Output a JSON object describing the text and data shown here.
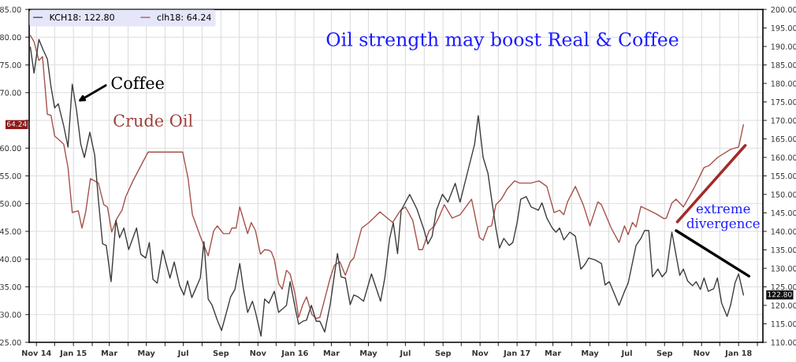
{
  "chart_data": {
    "type": "line",
    "xlim": [
      "2014-10-20",
      "2018-02-10"
    ],
    "xticks": [
      {
        "value": "2014-11-01",
        "label": "Nov 14"
      },
      {
        "value": "2014-12-01",
        "label": null
      },
      {
        "value": "2015-01-01",
        "label": "Jan 15"
      },
      {
        "value": "2015-02-01",
        "label": null
      },
      {
        "value": "2015-03-01",
        "label": "Mar"
      },
      {
        "value": "2015-04-01",
        "label": null
      },
      {
        "value": "2015-05-01",
        "label": "May"
      },
      {
        "value": "2015-06-01",
        "label": null
      },
      {
        "value": "2015-07-01",
        "label": "Jul"
      },
      {
        "value": "2015-08-01",
        "label": null
      },
      {
        "value": "2015-09-01",
        "label": "Sep"
      },
      {
        "value": "2015-10-01",
        "label": null
      },
      {
        "value": "2015-11-01",
        "label": "Nov"
      },
      {
        "value": "2015-12-01",
        "label": null
      },
      {
        "value": "2016-01-01",
        "label": "Jan 16"
      },
      {
        "value": "2016-02-01",
        "label": null
      },
      {
        "value": "2016-03-01",
        "label": "Mar"
      },
      {
        "value": "2016-04-01",
        "label": null
      },
      {
        "value": "2016-05-01",
        "label": "May"
      },
      {
        "value": "2016-06-01",
        "label": null
      },
      {
        "value": "2016-07-01",
        "label": "Jul"
      },
      {
        "value": "2016-08-01",
        "label": null
      },
      {
        "value": "2016-09-01",
        "label": "Sep"
      },
      {
        "value": "2016-10-01",
        "label": null
      },
      {
        "value": "2016-11-01",
        "label": "Nov"
      },
      {
        "value": "2016-12-01",
        "label": null
      },
      {
        "value": "2017-01-01",
        "label": "Jan 17"
      },
      {
        "value": "2017-02-01",
        "label": null
      },
      {
        "value": "2017-03-01",
        "label": "Mar"
      },
      {
        "value": "2017-04-01",
        "label": null
      },
      {
        "value": "2017-05-01",
        "label": "May"
      },
      {
        "value": "2017-06-01",
        "label": null
      },
      {
        "value": "2017-07-01",
        "label": "Jul"
      },
      {
        "value": "2017-08-01",
        "label": null
      },
      {
        "value": "2017-09-01",
        "label": "Sep"
      },
      {
        "value": "2017-10-01",
        "label": null
      },
      {
        "value": "2017-11-01",
        "label": "Nov"
      },
      {
        "value": "2017-12-01",
        "label": null
      },
      {
        "value": "2018-01-01",
        "label": "Jan 18"
      },
      {
        "value": "2018-02-01",
        "label": null
      }
    ],
    "ylim": [
      25,
      85
    ],
    "yticks": [
      {
        "value": 25,
        "label": "25.00"
      },
      {
        "value": 30,
        "label": "30.00"
      },
      {
        "value": 35,
        "label": "35.00"
      },
      {
        "value": 40,
        "label": "40.00"
      },
      {
        "value": 45,
        "label": "45.00"
      },
      {
        "value": 50,
        "label": "50.00"
      },
      {
        "value": 55,
        "label": "55.00"
      },
      {
        "value": 60,
        "label": "60.00"
      },
      {
        "value": 65,
        "label": null
      },
      {
        "value": 70,
        "label": "70.00"
      },
      {
        "value": 75,
        "label": "75.00"
      },
      {
        "value": 80,
        "label": "80.00"
      },
      {
        "value": 85,
        "label": "85.00"
      }
    ],
    "y2lim": [
      110,
      200
    ],
    "y2ticks": [
      {
        "value": 110,
        "label": "110.00"
      },
      {
        "value": 115,
        "label": "115.00"
      },
      {
        "value": 120,
        "label": "120.00"
      },
      {
        "value": 125,
        "label": "125.00"
      },
      {
        "value": 130,
        "label": "130.00"
      },
      {
        "value": 135,
        "label": "135.00"
      },
      {
        "value": 140,
        "label": "140.00"
      },
      {
        "value": 145,
        "label": "145.00"
      },
      {
        "value": 150,
        "label": "150.00"
      },
      {
        "value": 155,
        "label": "155.00"
      },
      {
        "value": 160,
        "label": "160.00"
      },
      {
        "value": 165,
        "label": "165.00"
      },
      {
        "value": 170,
        "label": "170.00"
      },
      {
        "value": 175,
        "label": "175.00"
      },
      {
        "value": 180,
        "label": "180.00"
      },
      {
        "value": 185,
        "label": "185.00"
      },
      {
        "value": 190,
        "label": "190.00"
      },
      {
        "value": 195,
        "label": "195.00"
      },
      {
        "value": 200,
        "label": "200.00"
      }
    ],
    "grid": true,
    "legend": "top left",
    "annotations": [
      "Oil strength may boost Real & Coffee",
      "Coffee",
      "Crude Oil",
      "extreme\ndivergence",
      "64.24",
      "122.80"
    ],
    "series": [
      {
        "name": "KCH18: 122.80",
        "color": "#3c3c3c",
        "axis": "y2",
        "x": [
          "2014-10-22",
          "2014-10-28",
          "2014-11-05",
          "2014-11-12",
          "2014-11-19",
          "2014-11-25",
          "2014-12-01",
          "2014-12-07",
          "2014-12-16",
          "2014-12-23",
          "2014-12-30",
          "2015-01-06",
          "2015-01-13",
          "2015-01-19",
          "2015-01-28",
          "2015-02-05",
          "2015-02-11",
          "2015-02-18",
          "2015-02-24",
          "2015-03-04",
          "2015-03-12",
          "2015-03-18",
          "2015-03-25",
          "2015-04-02",
          "2015-04-15",
          "2015-04-22",
          "2015-04-30",
          "2015-05-06",
          "2015-05-12",
          "2015-05-19",
          "2015-05-28",
          "2015-06-09",
          "2015-06-16",
          "2015-06-25",
          "2015-07-02",
          "2015-07-08",
          "2015-07-15",
          "2015-07-29",
          "2015-08-04",
          "2015-08-11",
          "2015-08-17",
          "2015-08-26",
          "2015-09-02",
          "2015-09-17",
          "2015-09-24",
          "2015-10-02",
          "2015-10-08",
          "2015-10-15",
          "2015-10-23",
          "2015-10-28",
          "2015-11-06",
          "2015-11-12",
          "2015-11-19",
          "2015-11-28",
          "2015-12-05",
          "2015-12-18",
          "2015-12-24",
          "2016-01-01",
          "2016-01-07",
          "2016-01-14",
          "2016-01-20",
          "2016-01-28",
          "2016-02-05",
          "2016-02-11",
          "2016-02-19",
          "2016-02-28",
          "2016-03-11",
          "2016-03-17",
          "2016-03-24",
          "2016-04-01",
          "2016-04-07",
          "2016-04-14",
          "2016-04-23",
          "2016-05-06",
          "2016-05-21",
          "2016-05-28",
          "2016-06-05",
          "2016-06-11",
          "2016-06-18",
          "2016-06-24",
          "2016-07-08",
          "2016-07-20",
          "2016-08-01",
          "2016-08-07",
          "2016-08-14",
          "2016-08-21",
          "2016-08-31",
          "2016-09-09",
          "2016-09-21",
          "2016-09-29",
          "2016-10-12",
          "2016-10-23",
          "2016-10-29",
          "2016-11-06",
          "2016-11-14",
          "2016-11-20",
          "2016-11-27",
          "2016-12-03",
          "2016-12-10",
          "2016-12-19",
          "2016-12-25",
          "2017-01-01",
          "2017-01-07",
          "2017-01-16",
          "2017-01-24",
          "2017-02-05",
          "2017-02-11",
          "2017-02-19",
          "2017-02-28",
          "2017-03-06",
          "2017-03-12",
          "2017-03-19",
          "2017-03-29",
          "2017-04-07",
          "2017-04-16",
          "2017-04-22",
          "2017-04-29",
          "2017-05-09",
          "2017-05-20",
          "2017-05-26",
          "2017-06-02",
          "2017-06-18",
          "2017-06-27",
          "2017-07-03",
          "2017-07-16",
          "2017-07-24",
          "2017-07-30",
          "2017-08-06",
          "2017-08-12",
          "2017-08-21",
          "2017-08-28",
          "2017-09-04",
          "2017-09-13",
          "2017-09-26",
          "2017-10-02",
          "2017-10-09",
          "2017-10-17",
          "2017-10-23",
          "2017-10-30",
          "2017-11-05",
          "2017-11-12",
          "2017-11-21",
          "2017-11-27",
          "2017-12-04",
          "2017-12-13",
          "2017-12-19",
          "2017-12-26",
          "2018-01-01",
          "2018-01-09"
        ],
        "values": [
          189.8,
          182.8,
          191.9,
          189.1,
          186.6,
          179.1,
          173.4,
          174.5,
          168.5,
          162.8,
          179.8,
          172.8,
          163.6,
          160.0,
          166.8,
          160.6,
          148.7,
          136.6,
          136.2,
          126.4,
          143.0,
          138.3,
          140.9,
          135.1,
          140.9,
          133.8,
          132.8,
          137.0,
          127.0,
          126.0,
          134.9,
          127.4,
          131.7,
          125.3,
          122.8,
          126.6,
          122.1,
          127.4,
          137.2,
          121.7,
          120.2,
          116.0,
          113.2,
          122.3,
          124.3,
          131.3,
          124.5,
          118.1,
          121.1,
          118.1,
          111.7,
          121.7,
          120.6,
          123.8,
          118.1,
          120.0,
          126.4,
          119.6,
          114.9,
          115.7,
          116.0,
          120.0,
          115.7,
          115.7,
          112.8,
          120.2,
          134.0,
          127.7,
          127.4,
          120.2,
          122.8,
          122.3,
          121.1,
          128.5,
          121.1,
          127.4,
          138.1,
          142.3,
          134.0,
          145.7,
          150.0,
          146.0,
          140.2,
          136.6,
          138.7,
          145.7,
          150.0,
          147.9,
          153.0,
          147.9,
          156.4,
          163.6,
          171.3,
          160.0,
          155.7,
          148.7,
          140.9,
          135.5,
          138.1,
          136.2,
          137.0,
          142.3,
          148.7,
          149.4,
          146.6,
          145.7,
          147.7,
          143.6,
          140.9,
          139.8,
          140.9,
          137.7,
          139.8,
          138.7,
          129.8,
          130.9,
          132.8,
          132.3,
          131.3,
          125.5,
          126.4,
          120.0,
          123.8,
          126.0,
          136.2,
          138.1,
          140.2,
          140.2,
          127.7,
          129.8,
          127.7,
          129.1,
          139.8,
          128.1,
          129.8,
          126.6,
          125.3,
          126.4,
          124.3,
          127.4,
          123.8,
          124.5,
          127.4,
          120.6,
          117.0,
          120.2,
          126.0,
          128.5,
          122.8
        ]
      },
      {
        "name": "clh18: 64.24",
        "color": "#a5524a",
        "axis": "y",
        "x": [
          "2014-10-22",
          "2014-10-28",
          "2014-11-05",
          "2014-11-11",
          "2014-11-19",
          "2014-11-25",
          "2014-12-01",
          "2014-12-16",
          "2014-12-23",
          "2014-12-30",
          "2015-01-09",
          "2015-01-15",
          "2015-01-21",
          "2015-01-29",
          "2015-02-05",
          "2015-02-11",
          "2015-02-20",
          "2015-02-26",
          "2015-03-05",
          "2015-03-14",
          "2015-03-22",
          "2015-03-28",
          "2015-04-09",
          "2015-05-04",
          "2015-05-31",
          "2015-06-30",
          "2015-07-09",
          "2015-07-16",
          "2015-07-29",
          "2015-08-11",
          "2015-08-20",
          "2015-08-26",
          "2015-09-05",
          "2015-09-15",
          "2015-09-19",
          "2015-09-26",
          "2015-10-02",
          "2015-10-15",
          "2015-10-21",
          "2015-10-28",
          "2015-11-05",
          "2015-11-12",
          "2015-11-19",
          "2015-11-23",
          "2015-11-28",
          "2015-12-05",
          "2015-12-11",
          "2015-12-18",
          "2015-12-24",
          "2016-01-01",
          "2016-01-07",
          "2016-01-14",
          "2016-01-20",
          "2016-01-29",
          "2016-02-05",
          "2016-02-11",
          "2016-02-20",
          "2016-02-28",
          "2016-03-06",
          "2016-03-15",
          "2016-03-24",
          "2016-04-01",
          "2016-04-07",
          "2016-04-14",
          "2016-04-20",
          "2016-05-02",
          "2016-05-20",
          "2016-06-10",
          "2016-06-23",
          "2016-07-01",
          "2016-07-13",
          "2016-07-23",
          "2016-07-29",
          "2016-08-09",
          "2016-08-18",
          "2016-08-27",
          "2016-09-03",
          "2016-09-16",
          "2016-09-29",
          "2016-10-18",
          "2016-10-31",
          "2016-11-06",
          "2016-11-14",
          "2016-11-20",
          "2016-11-27",
          "2016-12-06",
          "2016-12-16",
          "2016-12-28",
          "2017-01-05",
          "2017-01-24",
          "2017-02-06",
          "2017-02-19",
          "2017-03-03",
          "2017-03-12",
          "2017-03-19",
          "2017-03-25",
          "2017-04-07",
          "2017-04-20",
          "2017-05-01",
          "2017-05-14",
          "2017-05-20",
          "2017-06-05",
          "2017-06-18",
          "2017-06-27",
          "2017-07-03",
          "2017-07-10",
          "2017-07-16",
          "2017-07-24",
          "2017-08-06",
          "2017-08-19",
          "2017-08-31",
          "2017-09-04",
          "2017-09-13",
          "2017-09-20",
          "2017-10-02",
          "2017-10-19",
          "2017-11-05",
          "2017-11-14",
          "2017-11-27",
          "2017-12-19",
          "2018-01-01",
          "2018-01-09"
        ],
        "values": [
          80.3,
          79.2,
          75.8,
          76.5,
          66.1,
          65.9,
          62.2,
          60.7,
          56.5,
          48.4,
          48.7,
          45.6,
          48.4,
          54.5,
          54.1,
          53.7,
          49.8,
          49.4,
          44.9,
          47.4,
          48.8,
          51.2,
          54.1,
          59.3,
          59.3,
          59.3,
          54.5,
          48.0,
          44.1,
          40.6,
          45.1,
          46.0,
          44.6,
          44.6,
          45.6,
          45.6,
          49.4,
          44.6,
          46.6,
          45.1,
          40.9,
          41.7,
          41.6,
          41.3,
          39.9,
          35.6,
          34.6,
          38.0,
          37.3,
          33.8,
          29.5,
          31.8,
          33.2,
          30.0,
          29.3,
          29.5,
          33.2,
          36.6,
          38.9,
          39.5,
          37.1,
          39.5,
          40.2,
          43.2,
          45.6,
          46.6,
          48.5,
          46.6,
          48.8,
          49.4,
          47.0,
          41.7,
          41.7,
          45.1,
          46.0,
          48.0,
          49.8,
          47.4,
          48.0,
          50.8,
          43.9,
          43.4,
          45.8,
          46.0,
          49.8,
          50.8,
          52.7,
          54.1,
          53.7,
          53.7,
          54.1,
          53.1,
          48.4,
          48.8,
          48.0,
          50.3,
          53.1,
          49.8,
          46.0,
          50.3,
          49.8,
          45.6,
          43.0,
          46.0,
          44.4,
          46.6,
          45.8,
          49.5,
          48.8,
          48.1,
          47.3,
          47.4,
          50.1,
          50.8,
          49.4,
          52.7,
          56.5,
          56.9,
          58.3,
          59.8,
          60.2,
          64.24
        ]
      },
      {
        "color": "#a52a2a",
        "axis": "y",
        "x": [
          "2017-09-22",
          "2018-01-12"
        ],
        "values": [
          46.7,
          60.5
        ]
      },
      {
        "color": "#000000",
        "axis": "y2",
        "x": [
          "2017-09-20",
          "2018-01-18"
        ],
        "values": [
          140.2,
          127.9
        ]
      }
    ]
  }
}
